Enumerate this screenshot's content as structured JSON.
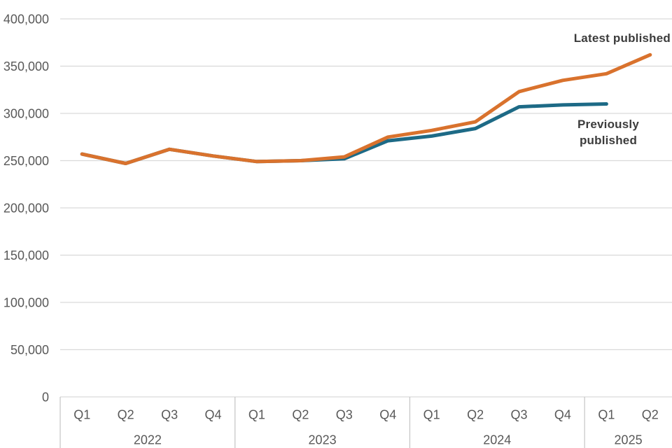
{
  "chart_data": {
    "type": "line",
    "title": "",
    "grid": "horizontal",
    "legend_position": "inline-annotations",
    "x_axis": {
      "year_groups": [
        {
          "year": "2022",
          "quarters": [
            "Q1",
            "Q2",
            "Q3",
            "Q4"
          ]
        },
        {
          "year": "2023",
          "quarters": [
            "Q1",
            "Q2",
            "Q3",
            "Q4"
          ]
        },
        {
          "year": "2024",
          "quarters": [
            "Q1",
            "Q2",
            "Q3",
            "Q4"
          ]
        },
        {
          "year": "2025",
          "quarters": [
            "Q1",
            "Q2"
          ]
        }
      ]
    },
    "y_axis": {
      "ylim": [
        0,
        400000
      ],
      "ticks": [
        {
          "value": 400000,
          "label": "400,000"
        },
        {
          "value": 350000,
          "label": "350,000"
        },
        {
          "value": 300000,
          "label": "300,000"
        },
        {
          "value": 250000,
          "label": "250,000"
        },
        {
          "value": 200000,
          "label": "200,000"
        },
        {
          "value": 150000,
          "label": "150,000"
        },
        {
          "value": 100000,
          "label": "100,000"
        },
        {
          "value": 50000,
          "label": "50,000"
        },
        {
          "value": 0,
          "label": "0"
        }
      ]
    },
    "series": [
      {
        "name": "Latest published",
        "color": "#d9722d",
        "values": [
          257000,
          247000,
          262000,
          255000,
          249000,
          250000,
          254000,
          275000,
          282000,
          291000,
          323000,
          335000,
          342000,
          362000
        ]
      },
      {
        "name": "Previously published",
        "color": "#1d6a86",
        "values": [
          257000,
          247000,
          262000,
          255000,
          249000,
          250000,
          252000,
          271000,
          276000,
          284000,
          307000,
          309000,
          310000
        ]
      }
    ],
    "annotations": [
      {
        "text": "Latest published"
      },
      {
        "text": "Previously published"
      }
    ]
  },
  "colors": {
    "gridline": "#d9d9d9",
    "axis_divider": "#c8c8c8",
    "axis_label": "#595959",
    "annotation_text": "#3c3c3c",
    "latest_line": "#d9722d",
    "previous_line": "#1d6a86"
  }
}
